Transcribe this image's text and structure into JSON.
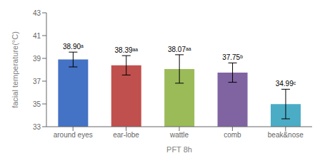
{
  "chart_data": {
    "type": "bar",
    "xlabel": "PFT 8h",
    "ylabel": "facial temperature(°C)",
    "categories": [
      "around eyes",
      "ear-lobe",
      "wattle",
      "comb",
      "beak&nose"
    ],
    "values": [
      38.9,
      38.39,
      38.07,
      37.75,
      34.99
    ],
    "errors": [
      0.65,
      0.85,
      1.25,
      0.85,
      1.3
    ],
    "value_labels": [
      "38.90ᵃ",
      "38.39ᵃᵃ",
      "38.07ᵃᵃ",
      "37.75ᵇ",
      "34.99ᶜ"
    ],
    "data_labels": true,
    "colors": [
      "#4472C4",
      "#C0504D",
      "#9BBB59",
      "#8064A2",
      "#4BACC6"
    ],
    "ylim": [
      33,
      43
    ],
    "yticks": [
      33,
      35,
      37,
      39,
      41,
      43
    ],
    "grid": false
  }
}
